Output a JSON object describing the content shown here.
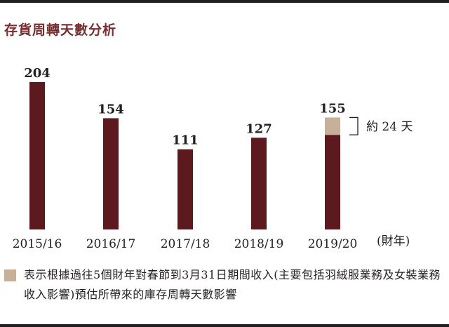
{
  "title": "存貨周轉天數分析",
  "chart_data": {
    "type": "bar",
    "categories": [
      "2015/16",
      "2016/17",
      "2017/18",
      "2018/19",
      "2019/20"
    ],
    "series": [
      {
        "values": [
          204,
          154,
          111,
          127,
          131
        ]
      },
      {
        "values": [
          0,
          0,
          0,
          0,
          24
        ]
      }
    ],
    "totals": [
      204,
      154,
      111,
      127,
      155
    ],
    "ylim": [
      0,
      210
    ],
    "xlabel": "(財年)",
    "annotation": "約 24 天",
    "colors": {
      "bar": "#5c1a1f",
      "highlight": "#c7b09a",
      "text": "#231f20",
      "title": "#7a2d2f"
    }
  },
  "legend": {
    "text": "表示根據過往5個財年對春節到3月31日期間收入(主要包括羽絨服業務及女裝業務收入影響)預估所帶來的庫存周轉天數影響",
    "color": "#c7b09a"
  }
}
